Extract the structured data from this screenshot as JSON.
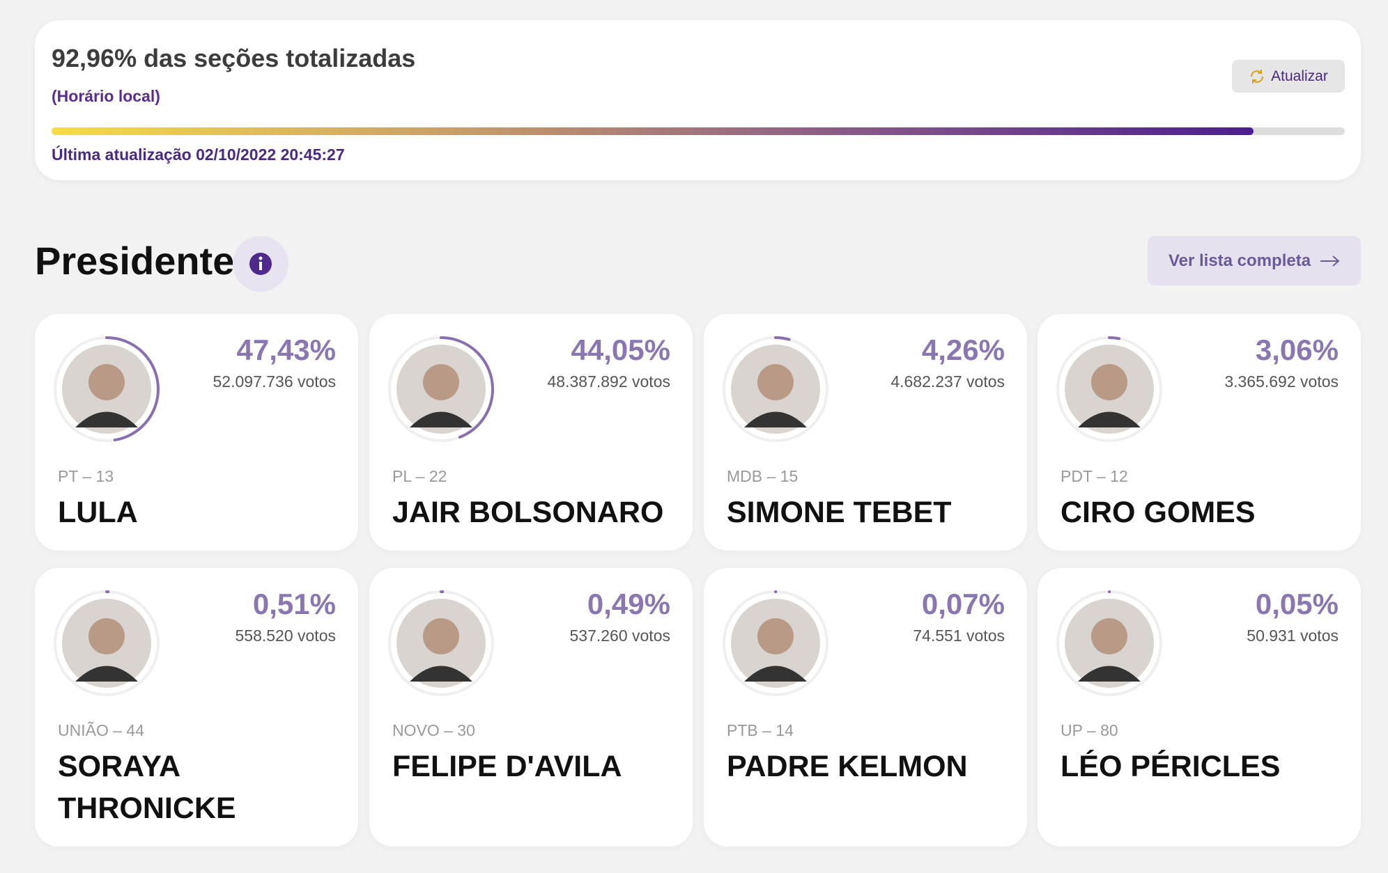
{
  "header": {
    "sections": {
      "value": 92.96,
      "label": "92,96% das seções totalizadas"
    },
    "local_time": "(Horário local)",
    "updated": "Última atualização 02/10/2022 20:45:27",
    "refresh_button": "Atualizar"
  },
  "section": {
    "title": "Presidente",
    "list_button": "Ver lista completa"
  },
  "candidates": [
    {
      "name": "LULA",
      "party": "PT – 13",
      "percent": {
        "value": 47.43,
        "label": "47,43%"
      },
      "votes": "52.097.736 votos"
    },
    {
      "name": "JAIR BOLSONARO",
      "party": "PL – 22",
      "percent": {
        "value": 44.05,
        "label": "44,05%"
      },
      "votes": "48.387.892 votos"
    },
    {
      "name": "SIMONE TEBET",
      "party": "MDB – 15",
      "percent": {
        "value": 4.26,
        "label": "4,26%"
      },
      "votes": "4.682.237 votos"
    },
    {
      "name": "CIRO GOMES",
      "party": "PDT – 12",
      "percent": {
        "value": 3.06,
        "label": "3,06%"
      },
      "votes": "3.365.692 votos"
    },
    {
      "name": "SORAYA THRONICKE",
      "party": "UNIÃO – 44",
      "percent": {
        "value": 0.51,
        "label": "0,51%"
      },
      "votes": "558.520 votos"
    },
    {
      "name": "FELIPE D'AVILA",
      "party": "NOVO – 30",
      "percent": {
        "value": 0.49,
        "label": "0,49%"
      },
      "votes": "537.260 votos"
    },
    {
      "name": "PADRE KELMON",
      "party": "PTB – 14",
      "percent": {
        "value": 0.07,
        "label": "0,07%"
      },
      "votes": "74.551 votos"
    },
    {
      "name": "LÉO PÉRICLES",
      "party": "UP – 80",
      "percent": {
        "value": 0.05,
        "label": "0,05%"
      },
      "votes": "50.931 votos"
    }
  ]
}
